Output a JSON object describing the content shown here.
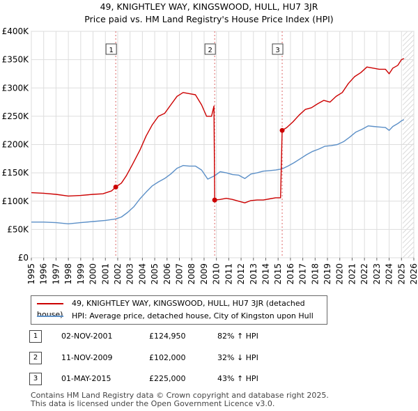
{
  "chart_data": {
    "type": "line",
    "title": "49, KNIGHTLEY WAY, KINGSWOOD, HULL, HU7 3JR",
    "subtitle": "Price paid vs. HM Land Registry's House Price Index (HPI)",
    "xlim": [
      1995,
      2026
    ],
    "ylim": [
      0,
      400000
    ],
    "x_ticks": [
      "1995",
      "1996",
      "1997",
      "1998",
      "1999",
      "2000",
      "2001",
      "2002",
      "2003",
      "2004",
      "2005",
      "2006",
      "2007",
      "2008",
      "2009",
      "2010",
      "2011",
      "2012",
      "2013",
      "2014",
      "2015",
      "2016",
      "2017",
      "2018",
      "2019",
      "2020",
      "2021",
      "2022",
      "2023",
      "2024",
      "2025",
      "2026"
    ],
    "y_ticks": [
      {
        "value": 0,
        "label": "£0"
      },
      {
        "value": 50000,
        "label": "£50K"
      },
      {
        "value": 100000,
        "label": "£100K"
      },
      {
        "value": 150000,
        "label": "£150K"
      },
      {
        "value": 200000,
        "label": "£200K"
      },
      {
        "value": 250000,
        "label": "£250K"
      },
      {
        "value": 300000,
        "label": "£300K"
      },
      {
        "value": 350000,
        "label": "£350K"
      },
      {
        "value": 400000,
        "label": "£400K"
      }
    ],
    "forecast_start": 2025.1,
    "colors": {
      "property": "#cc0000",
      "hpi": "#5b8fc7",
      "sale_marker": "#cc0000",
      "vline": "#dd6666",
      "grid": "#dddddd",
      "plot_bg": "#ffffff",
      "hatch": "#c8c8c8"
    },
    "series": [
      {
        "name": "49, KNIGHTLEY WAY, KINGSWOOD, HULL, HU7 3JR (detached house)",
        "color": "#cc0000",
        "points": [
          [
            1995.0,
            115000
          ],
          [
            1996.0,
            114000
          ],
          [
            1997.0,
            112000
          ],
          [
            1998.0,
            109000
          ],
          [
            1999.0,
            110000
          ],
          [
            2000.0,
            112000
          ],
          [
            2000.8,
            113000
          ],
          [
            2001.5,
            118000
          ],
          [
            2001.84,
            124950
          ],
          [
            2002.3,
            132000
          ],
          [
            2002.7,
            145000
          ],
          [
            2003.2,
            165000
          ],
          [
            2003.8,
            190000
          ],
          [
            2004.3,
            215000
          ],
          [
            2004.8,
            235000
          ],
          [
            2005.3,
            250000
          ],
          [
            2005.8,
            255000
          ],
          [
            2006.3,
            270000
          ],
          [
            2006.8,
            285000
          ],
          [
            2007.3,
            292000
          ],
          [
            2007.8,
            290000
          ],
          [
            2008.3,
            288000
          ],
          [
            2008.8,
            270000
          ],
          [
            2009.2,
            250000
          ],
          [
            2009.6,
            250000
          ],
          [
            2009.8,
            268000
          ],
          [
            2009.86,
            102000
          ],
          [
            2010.3,
            103000
          ],
          [
            2010.8,
            105000
          ],
          [
            2011.3,
            103000
          ],
          [
            2011.8,
            100000
          ],
          [
            2012.3,
            97000
          ],
          [
            2012.8,
            101000
          ],
          [
            2013.3,
            102000
          ],
          [
            2013.8,
            102000
          ],
          [
            2014.3,
            104000
          ],
          [
            2014.8,
            106000
          ],
          [
            2015.2,
            106000
          ],
          [
            2015.33,
            225000
          ],
          [
            2015.7,
            230000
          ],
          [
            2016.2,
            240000
          ],
          [
            2016.7,
            252000
          ],
          [
            2017.2,
            262000
          ],
          [
            2017.7,
            265000
          ],
          [
            2018.2,
            272000
          ],
          [
            2018.7,
            278000
          ],
          [
            2019.2,
            275000
          ],
          [
            2019.7,
            285000
          ],
          [
            2020.2,
            292000
          ],
          [
            2020.7,
            308000
          ],
          [
            2021.2,
            320000
          ],
          [
            2021.7,
            327000
          ],
          [
            2022.2,
            337000
          ],
          [
            2022.7,
            335000
          ],
          [
            2023.2,
            333000
          ],
          [
            2023.7,
            333000
          ],
          [
            2024.0,
            325000
          ],
          [
            2024.3,
            335000
          ],
          [
            2024.7,
            340000
          ],
          [
            2025.0,
            350000
          ],
          [
            2025.2,
            352000
          ]
        ]
      },
      {
        "name": "HPI: Average price, detached house, City of Kingston upon Hull",
        "color": "#5b8fc7",
        "points": [
          [
            1995.0,
            63000
          ],
          [
            1996.0,
            63000
          ],
          [
            1997.0,
            62000
          ],
          [
            1998.0,
            60000
          ],
          [
            1999.0,
            62000
          ],
          [
            2000.0,
            64000
          ],
          [
            2001.0,
            66000
          ],
          [
            2001.84,
            68500
          ],
          [
            2002.3,
            72000
          ],
          [
            2002.8,
            80000
          ],
          [
            2003.3,
            90000
          ],
          [
            2003.8,
            104000
          ],
          [
            2004.3,
            116000
          ],
          [
            2004.8,
            127000
          ],
          [
            2005.3,
            134000
          ],
          [
            2005.8,
            140000
          ],
          [
            2006.3,
            148000
          ],
          [
            2006.8,
            158000
          ],
          [
            2007.3,
            163000
          ],
          [
            2007.8,
            162000
          ],
          [
            2008.3,
            162000
          ],
          [
            2008.8,
            155000
          ],
          [
            2009.3,
            139000
          ],
          [
            2009.86,
            145000
          ],
          [
            2010.3,
            152000
          ],
          [
            2010.8,
            150000
          ],
          [
            2011.3,
            147000
          ],
          [
            2011.8,
            146000
          ],
          [
            2012.3,
            140000
          ],
          [
            2012.8,
            148000
          ],
          [
            2013.3,
            150000
          ],
          [
            2013.8,
            153000
          ],
          [
            2014.3,
            154000
          ],
          [
            2014.8,
            155000
          ],
          [
            2015.33,
            157000
          ],
          [
            2015.8,
            162000
          ],
          [
            2016.3,
            168000
          ],
          [
            2016.8,
            175000
          ],
          [
            2017.3,
            182000
          ],
          [
            2017.8,
            188000
          ],
          [
            2018.3,
            192000
          ],
          [
            2018.8,
            197000
          ],
          [
            2019.3,
            198000
          ],
          [
            2019.8,
            200000
          ],
          [
            2020.3,
            205000
          ],
          [
            2020.8,
            213000
          ],
          [
            2021.3,
            222000
          ],
          [
            2021.8,
            227000
          ],
          [
            2022.3,
            233000
          ],
          [
            2022.7,
            232000
          ],
          [
            2023.2,
            231000
          ],
          [
            2023.7,
            230000
          ],
          [
            2024.0,
            225000
          ],
          [
            2024.3,
            232000
          ],
          [
            2024.7,
            237000
          ],
          [
            2025.0,
            242000
          ],
          [
            2025.2,
            244000
          ]
        ]
      }
    ],
    "sales": [
      {
        "label": "1",
        "x": 2001.84,
        "y": 124950
      },
      {
        "label": "2",
        "x": 2009.86,
        "y": 102000
      },
      {
        "label": "3",
        "x": 2015.33,
        "y": 225000
      }
    ]
  },
  "legend": {
    "property": "49, KNIGHTLEY WAY, KINGSWOOD, HULL, HU7 3JR (detached house)",
    "hpi": "HPI: Average price, detached house, City of Kingston upon Hull"
  },
  "sales_table": [
    {
      "num": "1",
      "date": "02-NOV-2001",
      "price": "£124,950",
      "hpi": "82% ↑ HPI"
    },
    {
      "num": "2",
      "date": "11-NOV-2009",
      "price": "£102,000",
      "hpi": "32% ↓ HPI"
    },
    {
      "num": "3",
      "date": "01-MAY-2015",
      "price": "£225,000",
      "hpi": "43% ↑ HPI"
    }
  ],
  "footer": {
    "line1": "Contains HM Land Registry data © Crown copyright and database right 2025.",
    "line2": "This data is licensed under the Open Government Licence v3.0."
  }
}
